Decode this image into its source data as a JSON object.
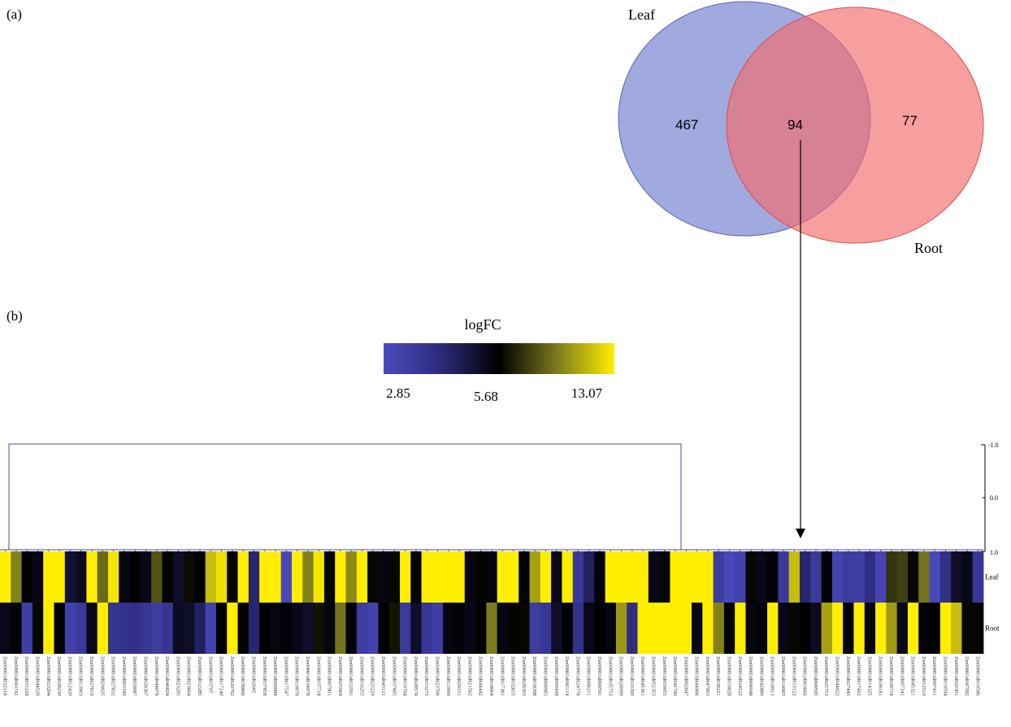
{
  "panels": {
    "a": "(a)",
    "b": "(b)"
  },
  "venn": {
    "sets": [
      {
        "name": "Leaf",
        "color": "#6f7ccc"
      },
      {
        "name": "Root",
        "color": "#f26b6b"
      }
    ],
    "only_leaf": "467",
    "intersection": "94",
    "only_root": "77"
  },
  "legend": {
    "title": "logFC",
    "ticks": [
      "2.85",
      "5.68",
      "13.07"
    ],
    "colors": [
      "#4b4bbf",
      "#2c2a7a",
      "#000000",
      "#7a7a1e",
      "#ffee00"
    ]
  },
  "scale": {
    "ticks": [
      "-1.0",
      "0.0",
      "1.0"
    ]
  },
  "chart_data": {
    "type": "heatmap",
    "rows": [
      "Leaf",
      "Root"
    ],
    "color_scale": {
      "min": 2.85,
      "mid": 5.68,
      "max": 13.07
    },
    "columns": [
      "Zm00001d032118",
      "Zm00001d043741",
      "Zm00001d031228",
      "Zm00001d044529",
      "Zm00001d023294",
      "Zm00001d028230",
      "Zm00001d012420",
      "Zm00001d013903",
      "Zm00001d027619",
      "Zm00001d029025",
      "Zm00001d027832",
      "Zm00001d003180",
      "Zm00001d029087",
      "Zm00001d028307",
      "Zm00001d044078",
      "Zm00001d046824",
      "Zm00001d023295",
      "Zm00001d023664",
      "Zm00001d012285",
      "Zm00001d03797",
      "Zm00001d017240",
      "Zm00001d020702",
      "Zm00001d038806",
      "Zm00001d02665",
      "Zm00001d037858",
      "Zm00001d009084",
      "Zm00001d017547",
      "Zm00001d019078",
      "Zm00001d034978",
      "Zm00001d037718",
      "Zm00001d007901",
      "Zm00001d025964",
      "Zm00001d012591",
      "Zm00001d016255",
      "Zm00001d025229",
      "Zm00001d043121",
      "Zm00001d037005",
      "Zm00001d019704",
      "Zm00001d028574",
      "Zm00001d033273",
      "Zm00001d023700",
      "Zm00001d013900",
      "Zm00001d029151",
      "Zm00001d021562",
      "Zm00001d044442",
      "Zm00001d018064",
      "Zm00001d017381",
      "Zm00001d032655",
      "Zm00001d028303",
      "Zm00001d018398",
      "Zm00001d008983",
      "Zm00001d000438",
      "Zm00001d042114",
      "Zm00001d024778",
      "Zm00001d006211",
      "Zm00001d006591",
      "Zm00001d035753",
      "Zm00001d028999",
      "Zm00001d033300",
      "Zm00001d045361",
      "Zm00001d052353",
      "Zm00001d050055",
      "Zm00001d042799",
      "Zm00001d002847",
      "Zm00001d044906",
      "Zm00001d047993",
      "Zm00001d038221",
      "Zm00001d010828",
      "Zm00001d024522",
      "Zm00001d006948",
      "Zm00001d042880",
      "Zm00001d018913",
      "Zm00001d014983",
      "Zm00001d033122",
      "Zm00001d003666",
      "Zm00001d008595",
      "Zm00001d025753",
      "Zm00001d044022",
      "Zm00001d027443",
      "Zm00001d017422",
      "Zm00001d014325",
      "Zm00001d038181",
      "Zm00001d028718",
      "Zm00001d007341",
      "Zm00001d045321",
      "Zm00001d012510",
      "Zm00001d007411",
      "Zm00001d019594",
      "Zm00001d020301",
      "Zm00001d047582",
      "Zm00001d010586"
    ],
    "values": {
      "Leaf": [
        13.07,
        9.6,
        5.7,
        5.4,
        13.07,
        13.07,
        5.1,
        5.3,
        13.07,
        8.9,
        12.8,
        5.5,
        5.7,
        5.4,
        8.2,
        5.8,
        5.2,
        6.0,
        5.7,
        11.5,
        12.6,
        5.8,
        13.07,
        4.4,
        13.07,
        13.07,
        3.0,
        13.07,
        9.6,
        12.8,
        5.9,
        13.07,
        9.9,
        13.07,
        5.9,
        5.5,
        5.9,
        13.07,
        5.6,
        13.07,
        13.07,
        13.07,
        13.07,
        5.5,
        5.8,
        5.5,
        13.07,
        13.07,
        5.6,
        10.6,
        13.07,
        5.4,
        13.07,
        3.6,
        4.6,
        5.6,
        13.07,
        13.07,
        13.07,
        13.07,
        5.4,
        5.9,
        13.07,
        13.07,
        13.07,
        13.07,
        3.5,
        3.0,
        3.2,
        5.9,
        5.4,
        5.6,
        3.6,
        11.5,
        4.4,
        3.6,
        5.6,
        3.2,
        3.5,
        3.4,
        4.1,
        3.1,
        7.3,
        7.6,
        5.9,
        9.2,
        3.0,
        4.0,
        5.2,
        5.4,
        3.7
      ],
      "Root": [
        5.4,
        5.6,
        3.4,
        5.9,
        13.07,
        5.7,
        3.3,
        3.6,
        5.4,
        13.07,
        3.8,
        3.9,
        4.0,
        3.8,
        3.5,
        3.8,
        5.3,
        5.2,
        4.6,
        3.2,
        5.7,
        13.07,
        5.8,
        4.4,
        5.7,
        5.5,
        5.6,
        5.4,
        5.2,
        6.2,
        5.5,
        9.2,
        5.6,
        3.5,
        3.2,
        5.7,
        6.3,
        3.6,
        5.2,
        3.7,
        3.4,
        5.5,
        5.6,
        5.4,
        5.7,
        9.4,
        5.5,
        5.8,
        5.9,
        3.5,
        3.7,
        5.2,
        5.6,
        3.9,
        5.4,
        5.7,
        5.5,
        10.3,
        4.1,
        13.07,
        13.07,
        13.07,
        13.07,
        13.07,
        5.4,
        13.07,
        9.6,
        5.8,
        13.07,
        5.5,
        5.6,
        13.07,
        5.4,
        5.9,
        5.7,
        5.3,
        10.6,
        13.07,
        5.6,
        13.07,
        5.5,
        13.07,
        10.4,
        5.4,
        13.07,
        5.6,
        5.7,
        13.07,
        11.5,
        5.9,
        5.8
      ]
    }
  }
}
